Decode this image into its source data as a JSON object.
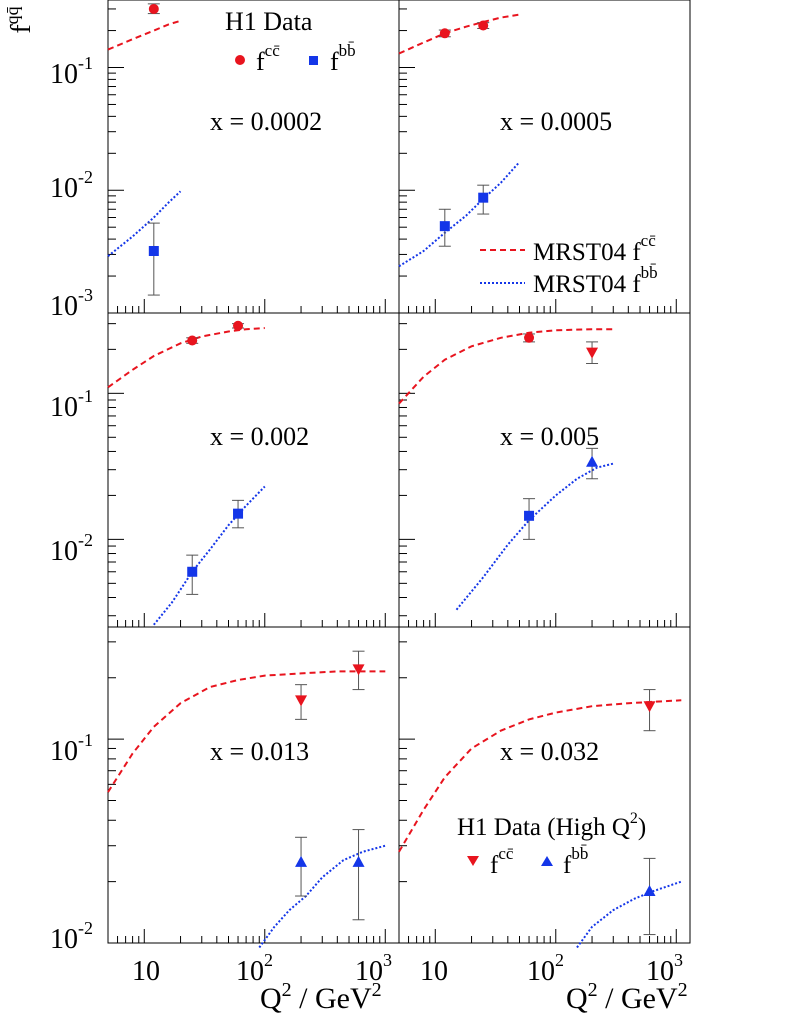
{
  "figure": {
    "y_axis_title": "f",
    "y_axis_title_sup": "qq̄",
    "x_axis_title": "Q",
    "x_axis_title_sup": "2",
    "x_axis_title_rest": " / GeV",
    "x_axis_title_sup2": "2"
  },
  "legend_h1": {
    "title": "H1 Data",
    "cc_label": "f",
    "cc_sup": "cc̄",
    "bb_label": "f",
    "bb_sup": "bb̄"
  },
  "legend_mrst": {
    "cc_label": "MRST04 f",
    "cc_sup": "cc̄",
    "bb_label": "MRST04 f",
    "bb_sup": "bb̄"
  },
  "legend_highq2": {
    "title": "H1 Data (High Q",
    "title_sup": "2",
    "title_end": ")",
    "cc_label": "f",
    "cc_sup": "cc̄",
    "bb_label": "f",
    "bb_sup": "bb̄"
  },
  "colors": {
    "cc": "#e8141e",
    "bb": "#1436e8",
    "error_bar": "#555555"
  },
  "chart_data": [
    {
      "type": "scatter",
      "label": "x = 0.0002",
      "cc_data": [
        {
          "q2": 12,
          "f": 0.3,
          "err_lo": 0.025,
          "err_hi": 0.03,
          "marker": "circle"
        }
      ],
      "bb_data": [
        {
          "q2": 12,
          "f": 0.0032,
          "err_lo": 0.0018,
          "err_hi": 0.0022,
          "marker": "square"
        }
      ],
      "cc_theory": [
        [
          5,
          0.14
        ],
        [
          8,
          0.17
        ],
        [
          12,
          0.2
        ],
        [
          16,
          0.225
        ],
        [
          20,
          0.24
        ]
      ],
      "bb_theory": [
        [
          5,
          0.0029
        ],
        [
          8,
          0.0042
        ],
        [
          12,
          0.006
        ],
        [
          16,
          0.008
        ],
        [
          20,
          0.0098
        ]
      ]
    },
    {
      "type": "scatter",
      "label": "x = 0.0005",
      "cc_data": [
        {
          "q2": 12,
          "f": 0.19,
          "err_lo": 0.012,
          "err_hi": 0.012,
          "marker": "circle"
        },
        {
          "q2": 25,
          "f": 0.22,
          "err_lo": 0.012,
          "err_hi": 0.012,
          "marker": "circle"
        }
      ],
      "bb_data": [
        {
          "q2": 12,
          "f": 0.0051,
          "err_lo": 0.0016,
          "err_hi": 0.0019,
          "marker": "square"
        },
        {
          "q2": 25,
          "f": 0.0087,
          "err_lo": 0.0023,
          "err_hi": 0.0023,
          "marker": "square"
        }
      ],
      "cc_theory": [
        [
          5,
          0.13
        ],
        [
          8,
          0.16
        ],
        [
          12,
          0.19
        ],
        [
          18,
          0.215
        ],
        [
          25,
          0.235
        ],
        [
          35,
          0.255
        ],
        [
          50,
          0.27
        ]
      ],
      "bb_theory": [
        [
          5,
          0.0024
        ],
        [
          8,
          0.0032
        ],
        [
          12,
          0.0045
        ],
        [
          18,
          0.0062
        ],
        [
          25,
          0.0085
        ],
        [
          35,
          0.0115
        ],
        [
          50,
          0.017
        ]
      ]
    },
    {
      "type": "scatter",
      "label": "x = 0.002",
      "cc_data": [
        {
          "q2": 25,
          "f": 0.23,
          "err_lo": 0.01,
          "err_hi": 0.01,
          "marker": "circle"
        },
        {
          "q2": 60,
          "f": 0.29,
          "err_lo": 0.01,
          "err_hi": 0.01,
          "marker": "circle"
        }
      ],
      "bb_data": [
        {
          "q2": 25,
          "f": 0.006,
          "err_lo": 0.0018,
          "err_hi": 0.0018,
          "marker": "square"
        },
        {
          "q2": 60,
          "f": 0.015,
          "err_lo": 0.003,
          "err_hi": 0.0035,
          "marker": "square"
        }
      ],
      "cc_theory": [
        [
          5,
          0.11
        ],
        [
          8,
          0.145
        ],
        [
          12,
          0.18
        ],
        [
          20,
          0.22
        ],
        [
          30,
          0.245
        ],
        [
          50,
          0.265
        ],
        [
          70,
          0.275
        ],
        [
          100,
          0.28
        ]
      ],
      "bb_theory": [
        [
          12,
          0.0026
        ],
        [
          17,
          0.0037
        ],
        [
          25,
          0.006
        ],
        [
          35,
          0.0085
        ],
        [
          50,
          0.0125
        ],
        [
          70,
          0.017
        ],
        [
          100,
          0.023
        ]
      ]
    },
    {
      "type": "scatter",
      "label": "x = 0.005",
      "cc_data": [
        {
          "q2": 60,
          "f": 0.24,
          "err_lo": 0.015,
          "err_hi": 0.015,
          "marker": "circle"
        },
        {
          "q2": 200,
          "f": 0.19,
          "err_lo": 0.03,
          "err_hi": 0.035,
          "marker": "tri-down"
        }
      ],
      "bb_data": [
        {
          "q2": 60,
          "f": 0.0145,
          "err_lo": 0.0045,
          "err_hi": 0.0045,
          "marker": "square"
        },
        {
          "q2": 200,
          "f": 0.034,
          "err_lo": 0.008,
          "err_hi": 0.008,
          "marker": "tri-up"
        }
      ],
      "cc_theory": [
        [
          5,
          0.085
        ],
        [
          8,
          0.13
        ],
        [
          12,
          0.17
        ],
        [
          20,
          0.21
        ],
        [
          35,
          0.24
        ],
        [
          60,
          0.26
        ],
        [
          100,
          0.27
        ],
        [
          200,
          0.275
        ],
        [
          300,
          0.275
        ]
      ],
      "bb_theory": [
        [
          15,
          0.0033
        ],
        [
          25,
          0.0055
        ],
        [
          40,
          0.0092
        ],
        [
          60,
          0.0135
        ],
        [
          100,
          0.02
        ],
        [
          150,
          0.026
        ],
        [
          220,
          0.031
        ],
        [
          300,
          0.033
        ]
      ]
    },
    {
      "type": "scatter",
      "label": "x = 0.013",
      "cc_data": [
        {
          "q2": 200,
          "f": 0.155,
          "err_lo": 0.03,
          "err_hi": 0.03,
          "marker": "tri-down"
        },
        {
          "q2": 600,
          "f": 0.22,
          "err_lo": 0.045,
          "err_hi": 0.05,
          "marker": "tri-down"
        }
      ],
      "bb_data": [
        {
          "q2": 200,
          "f": 0.025,
          "err_lo": 0.008,
          "err_hi": 0.008,
          "marker": "tri-up"
        },
        {
          "q2": 600,
          "f": 0.025,
          "err_lo": 0.012,
          "err_hi": 0.011,
          "marker": "tri-up"
        }
      ],
      "cc_theory": [
        [
          5,
          0.055
        ],
        [
          8,
          0.085
        ],
        [
          12,
          0.115
        ],
        [
          20,
          0.15
        ],
        [
          35,
          0.18
        ],
        [
          60,
          0.195
        ],
        [
          100,
          0.205
        ],
        [
          200,
          0.21
        ],
        [
          400,
          0.215
        ],
        [
          1000,
          0.215
        ]
      ],
      "bb_theory": [
        [
          90,
          0.0095
        ],
        [
          120,
          0.012
        ],
        [
          160,
          0.0145
        ],
        [
          220,
          0.017
        ],
        [
          300,
          0.021
        ],
        [
          450,
          0.0255
        ],
        [
          650,
          0.028
        ],
        [
          1000,
          0.03
        ]
      ]
    },
    {
      "type": "scatter",
      "label": "x = 0.032",
      "cc_data": [
        {
          "q2": 600,
          "f": 0.145,
          "err_lo": 0.035,
          "err_hi": 0.03,
          "marker": "tri-down"
        }
      ],
      "bb_data": [
        {
          "q2": 600,
          "f": 0.018,
          "err_lo": 0.007,
          "err_hi": 0.008,
          "marker": "tri-up"
        }
      ],
      "cc_theory": [
        [
          5,
          0.028
        ],
        [
          8,
          0.045
        ],
        [
          12,
          0.065
        ],
        [
          20,
          0.09
        ],
        [
          35,
          0.11
        ],
        [
          60,
          0.125
        ],
        [
          100,
          0.135
        ],
        [
          200,
          0.145
        ],
        [
          400,
          0.15
        ],
        [
          1100,
          0.155
        ]
      ],
      "bb_theory": [
        [
          150,
          0.0095
        ],
        [
          200,
          0.012
        ],
        [
          300,
          0.0145
        ],
        [
          450,
          0.0165
        ],
        [
          650,
          0.018
        ],
        [
          1100,
          0.02
        ]
      ]
    }
  ]
}
